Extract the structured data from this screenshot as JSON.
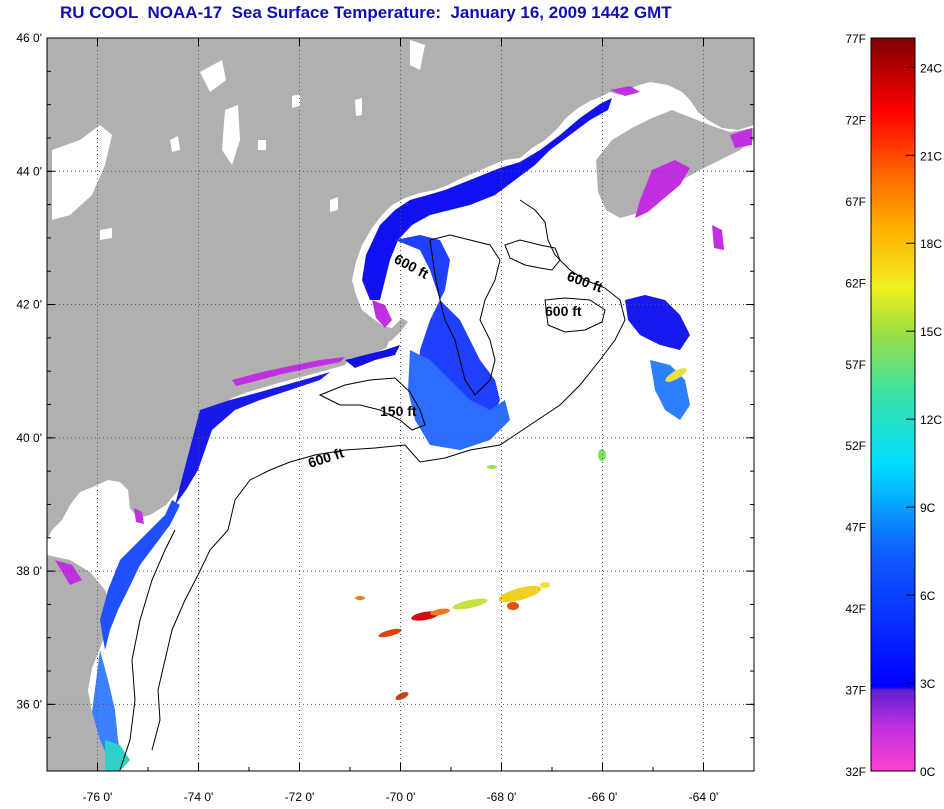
{
  "title": "RU COOL  NOAA-17  Sea Surface Temperature:  January 16, 2009 1442 GMT",
  "map": {
    "lon_range": [
      -77,
      -63
    ],
    "lat_range": [
      35,
      46
    ],
    "lon_ticks": [
      {
        "value": -76,
        "label": "-76 0'"
      },
      {
        "value": -74,
        "label": "-74 0'"
      },
      {
        "value": -72,
        "label": "-72 0'"
      },
      {
        "value": -70,
        "label": "-70 0'"
      },
      {
        "value": -68,
        "label": "-68 0'"
      },
      {
        "value": -66,
        "label": "-66 0'"
      },
      {
        "value": -64,
        "label": "-64 0'"
      }
    ],
    "lat_ticks": [
      {
        "value": 36,
        "label": "36 0'"
      },
      {
        "value": 38,
        "label": "38 0'"
      },
      {
        "value": 40,
        "label": "40 0'"
      },
      {
        "value": 42,
        "label": "42 0'"
      },
      {
        "value": 44,
        "label": "44 0'"
      },
      {
        "value": 46,
        "label": "46 0'"
      }
    ],
    "contour_labels": [
      "600 ft",
      "600 ft",
      "600 ft",
      "150 ft",
      "600 ft"
    ],
    "land_color": "#b0b0b0",
    "grid": "dotted"
  },
  "colorbar": {
    "f_ticks": [
      "77F",
      "72F",
      "67F",
      "62F",
      "57F",
      "52F",
      "47F",
      "42F",
      "37F",
      "32F"
    ],
    "c_ticks": [
      "24C",
      "21C",
      "18C",
      "15C",
      "12C",
      "9C",
      "6C",
      "3C",
      "0C"
    ],
    "f_range": [
      32,
      77
    ]
  }
}
